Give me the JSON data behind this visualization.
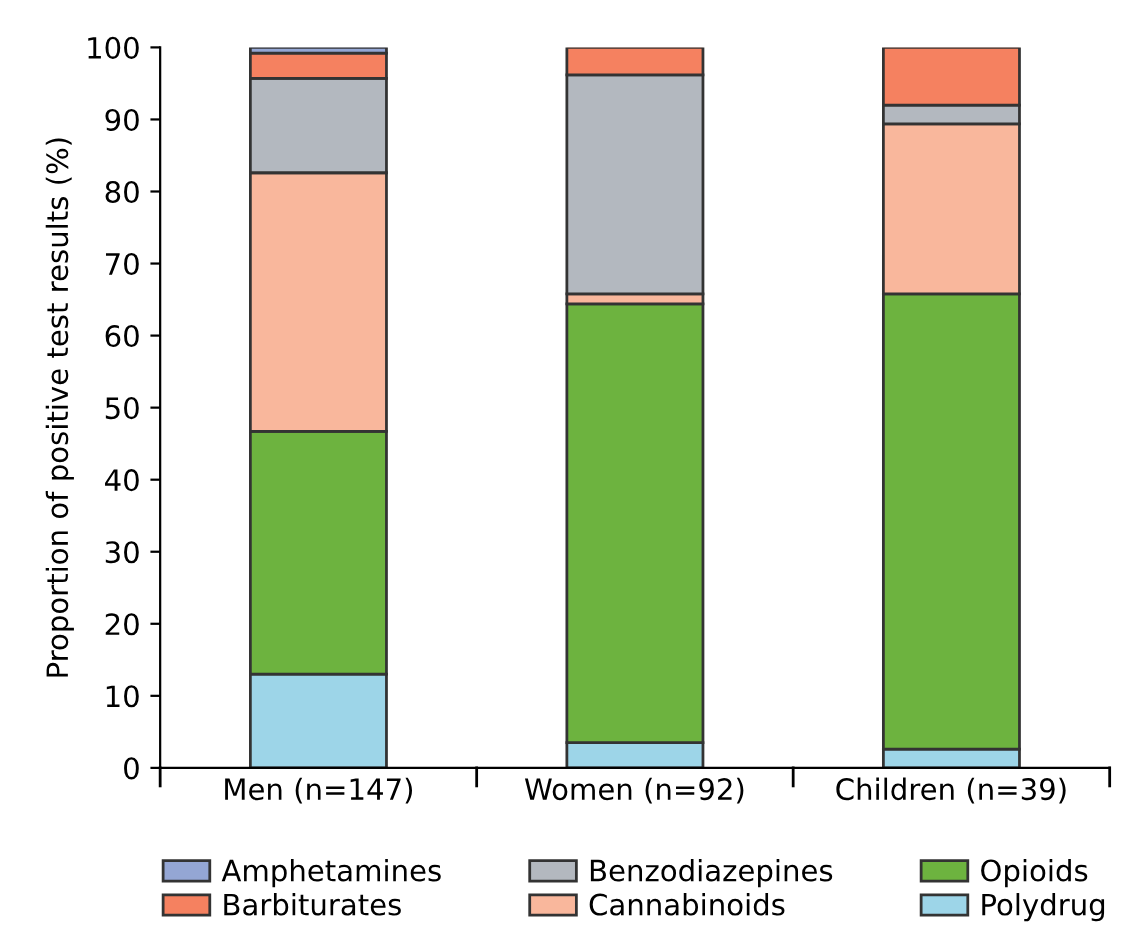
{
  "chart_data": {
    "type": "bar",
    "stacked": true,
    "ylabel": "Proportion of positive test results (%)",
    "categories": [
      "Men (n=147)",
      "Women (n=92)",
      "Children (n=39)"
    ],
    "series": [
      {
        "name": "Polydrug",
        "color": "#9dd5e8",
        "values": [
          13.0,
          3.5,
          2.6
        ]
      },
      {
        "name": "Opioids",
        "color": "#6db33f",
        "values": [
          33.7,
          60.9,
          63.2
        ]
      },
      {
        "name": "Cannabinoids",
        "color": "#f9b79c",
        "values": [
          35.9,
          1.4,
          23.6
        ]
      },
      {
        "name": "Benzodiazepines",
        "color": "#b3b8bf",
        "values": [
          13.1,
          30.4,
          2.6
        ]
      },
      {
        "name": "Barbiturates",
        "color": "#f58160",
        "values": [
          3.5,
          3.8,
          8.0
        ]
      },
      {
        "name": "Amphetamines",
        "color": "#94a6d4",
        "values": [
          0.8,
          null,
          null
        ]
      }
    ],
    "ylim": [
      0,
      100
    ],
    "yticks": [
      0,
      10,
      20,
      30,
      40,
      50,
      60,
      70,
      80,
      90,
      100
    ],
    "grid": false,
    "legend": "bottom"
  }
}
